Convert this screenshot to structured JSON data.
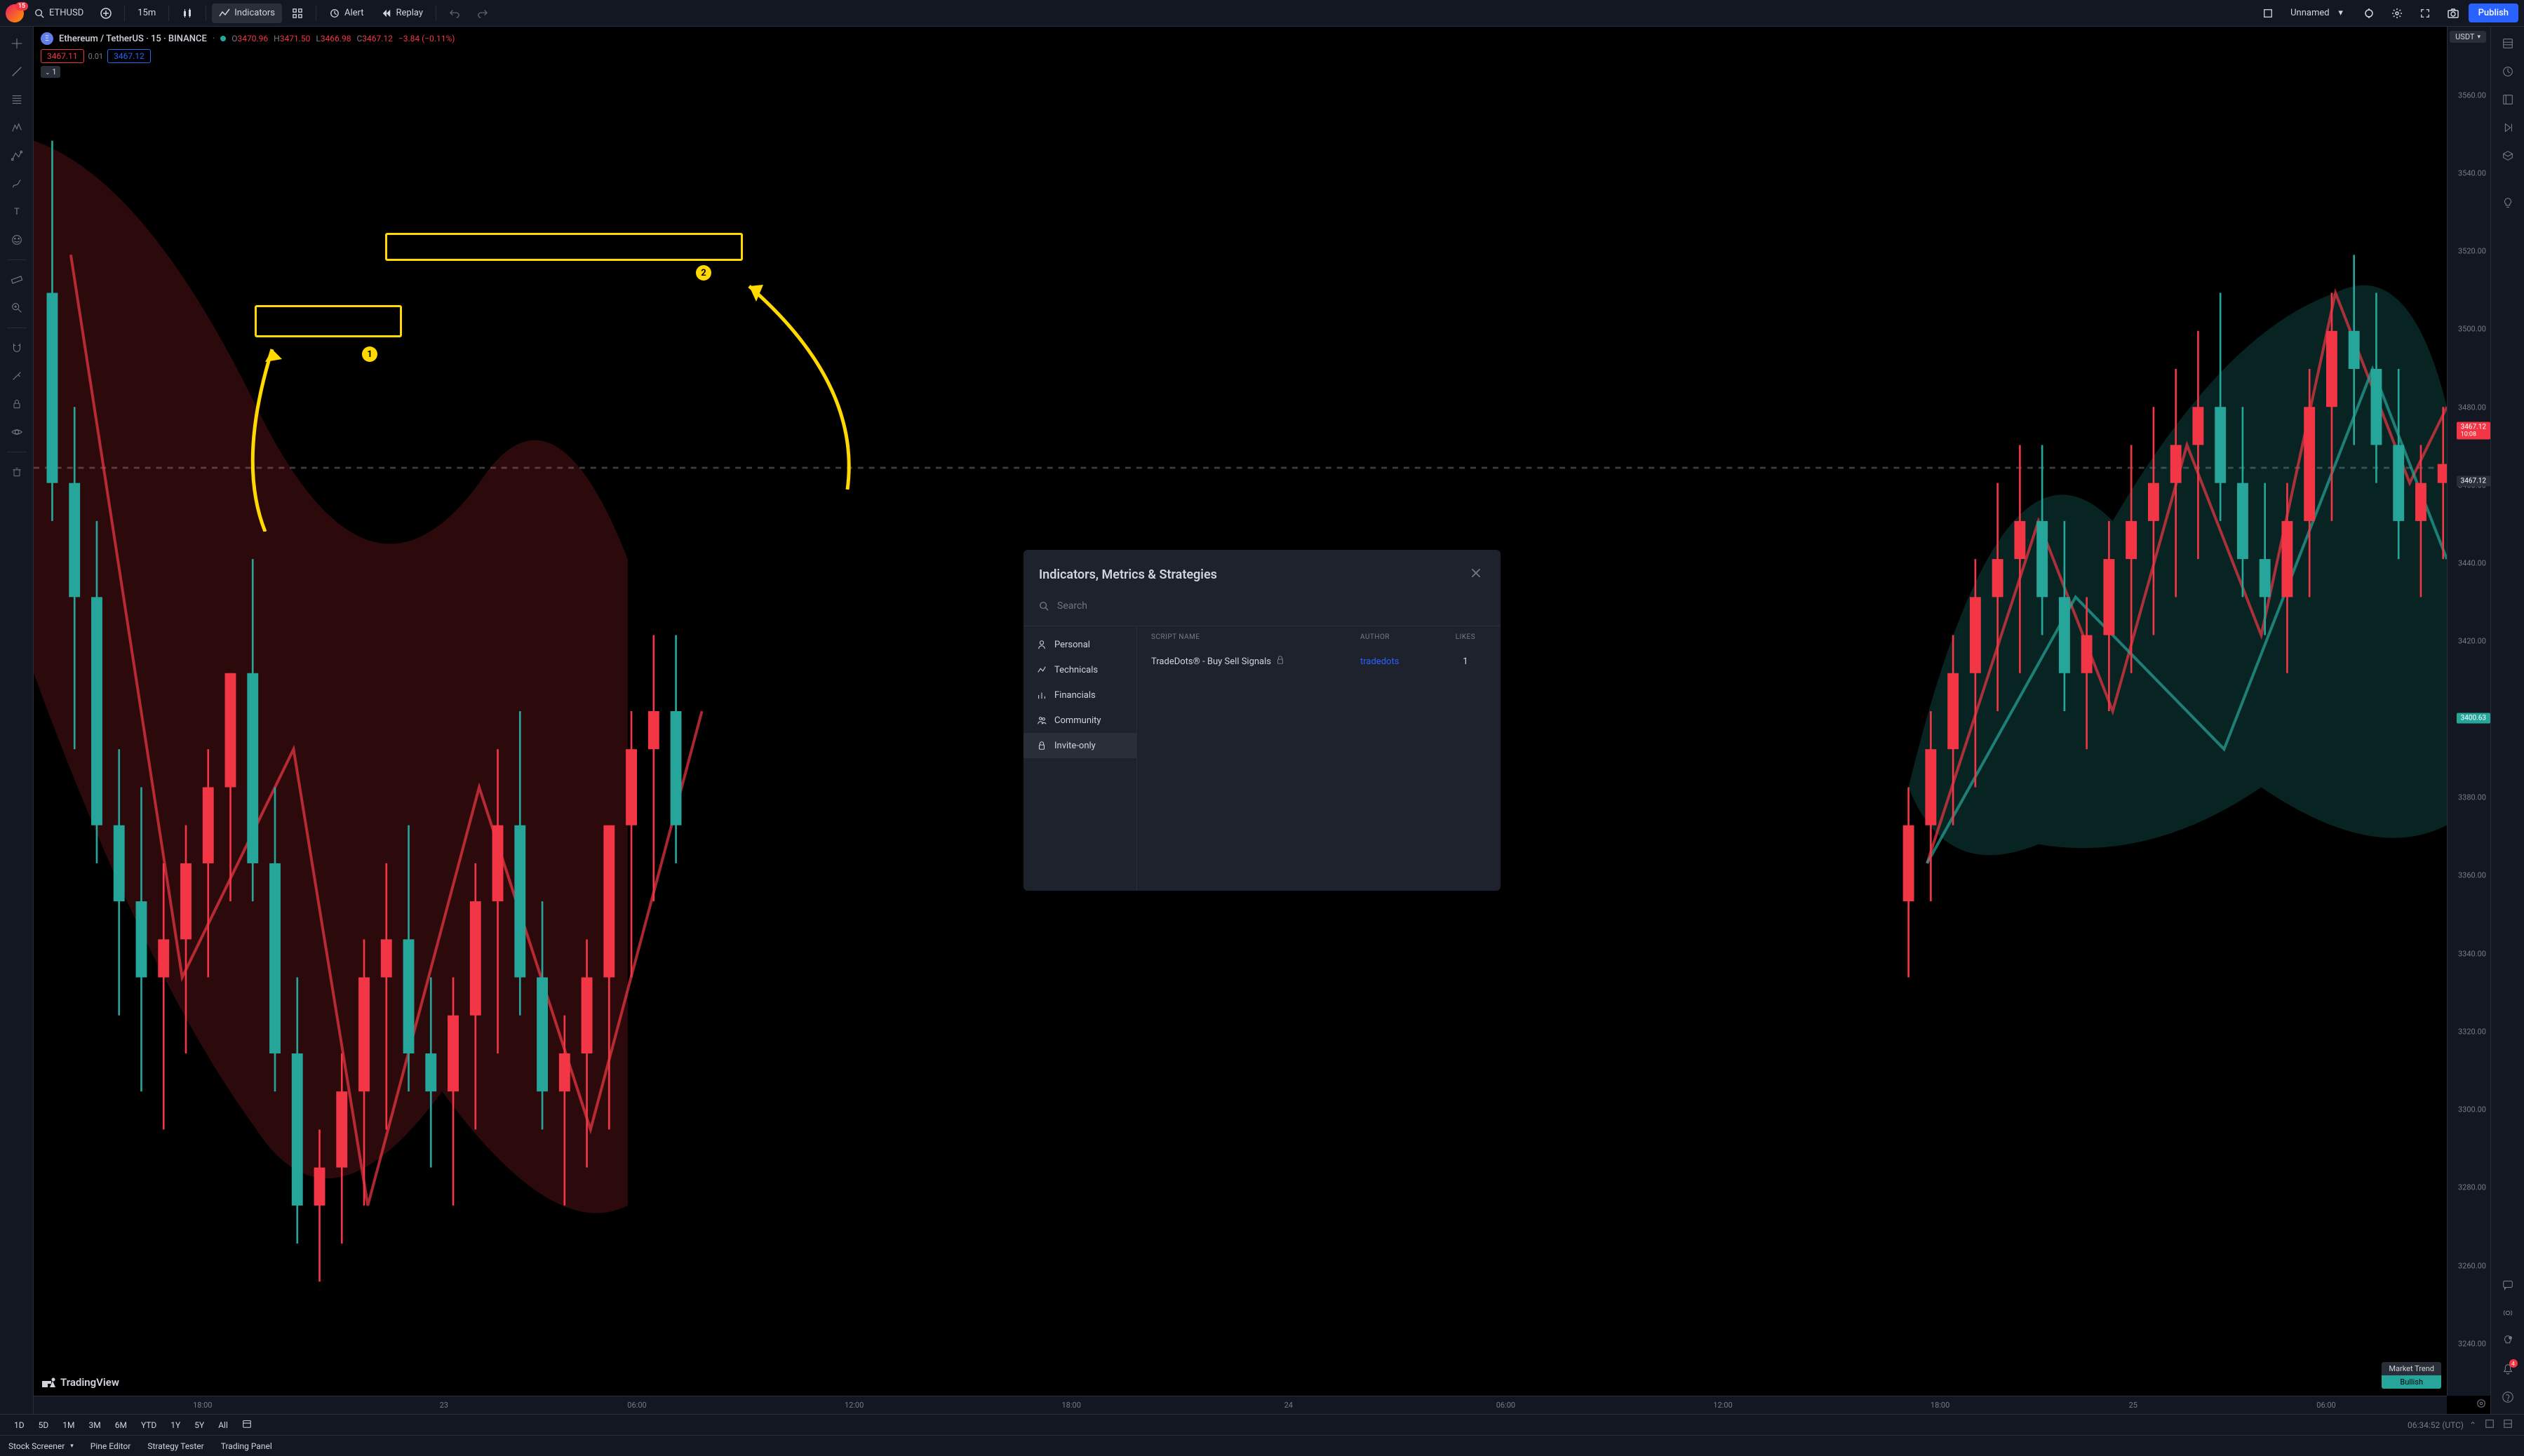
{
  "topbar": {
    "avatar_badge": "15",
    "symbol": "ETHUSD",
    "interval": "15m",
    "indicators": "Indicators",
    "alert": "Alert",
    "replay": "Replay",
    "layout_name": "Unnamed",
    "publish": "Publish"
  },
  "chart": {
    "symbol_full": "Ethereum / TetherUS · 15 · BINANCE",
    "ohlc": {
      "o_label": "O",
      "o": "3470.96",
      "h_label": "H",
      "h": "3471.50",
      "l_label": "L",
      "l": "3466.98",
      "c_label": "C",
      "c": "3467.12",
      "change": "−3.84 (−0.11%)"
    },
    "price_bid": "3467.11",
    "price_spread": "0.01",
    "price_ask": "3467.12",
    "expand_count": "1",
    "currency": "USDT",
    "logo": "TradingView",
    "market_trend_label": "Market Trend",
    "market_trend_value": "Bullish"
  },
  "price_axis": {
    "ticks": [
      {
        "v": "3560.00",
        "p": 5
      },
      {
        "v": "3540.00",
        "p": 10.7
      },
      {
        "v": "3520.00",
        "p": 16.4
      },
      {
        "v": "3500.00",
        "p": 22.1
      },
      {
        "v": "3480.00",
        "p": 27.8
      },
      {
        "v": "3460.00",
        "p": 33.5
      },
      {
        "v": "3440.00",
        "p": 39.2
      },
      {
        "v": "3420.00",
        "p": 44.9
      },
      {
        "v": "3400.00",
        "p": 50.6
      },
      {
        "v": "3380.00",
        "p": 56.3
      },
      {
        "v": "3360.00",
        "p": 62
      },
      {
        "v": "3340.00",
        "p": 67.7
      },
      {
        "v": "3320.00",
        "p": 73.4
      },
      {
        "v": "3300.00",
        "p": 79.1
      },
      {
        "v": "3280.00",
        "p": 84.8
      },
      {
        "v": "3260.00",
        "p": 90.5
      },
      {
        "v": "3240.00",
        "p": 96.2
      }
    ],
    "current_price": "3467.12",
    "current_time": "10:08",
    "current_bid": "3467.12",
    "indicator_price": "3400.63"
  },
  "time_axis": {
    "ticks": [
      {
        "v": "18:00",
        "p": 7
      },
      {
        "v": "23",
        "p": 17
      },
      {
        "v": "06:00",
        "p": 25
      },
      {
        "v": "12:00",
        "p": 34
      },
      {
        "v": "18:00",
        "p": 43
      },
      {
        "v": "24",
        "p": 52
      },
      {
        "v": "06:00",
        "p": 61
      },
      {
        "v": "12:00",
        "p": 70
      },
      {
        "v": "18:00",
        "p": 79
      },
      {
        "v": "25",
        "p": 87
      },
      {
        "v": "06:00",
        "p": 95
      }
    ]
  },
  "modal": {
    "title": "Indicators, Metrics & Strategies",
    "search_placeholder": "Search",
    "categories": [
      {
        "label": "Personal",
        "icon": "person"
      },
      {
        "label": "Technicals",
        "icon": "chart"
      },
      {
        "label": "Financials",
        "icon": "bars"
      },
      {
        "label": "Community",
        "icon": "people"
      },
      {
        "label": "Invite-only",
        "icon": "lock",
        "selected": true
      }
    ],
    "columns": {
      "name": "SCRIPT NAME",
      "author": "AUTHOR",
      "likes": "LIKES"
    },
    "rows": [
      {
        "name": "TradeDots® - Buy Sell Signals",
        "author": "tradedots",
        "likes": "1",
        "locked": true
      }
    ]
  },
  "ranges": [
    "1D",
    "5D",
    "1M",
    "3M",
    "6M",
    "YTD",
    "1Y",
    "5Y",
    "All"
  ],
  "range_time": "06:34:52 (UTC)",
  "bottom": [
    "Stock Screener",
    "Pine Editor",
    "Strategy Tester",
    "Trading Panel"
  ],
  "right_badge": "4",
  "annotations": {
    "num1": "1",
    "num2": "2"
  },
  "colors": {
    "bg": "#131722",
    "panel": "#1e222d",
    "border": "#2a2e39",
    "text": "#d1d4dc",
    "muted": "#787b86",
    "red": "#f23645",
    "green": "#26a69a",
    "blue": "#2962ff",
    "yellow": "#ffd900"
  }
}
